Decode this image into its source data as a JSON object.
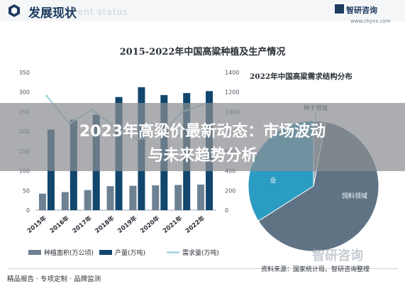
{
  "header": {
    "title": "发展现状",
    "subtitle": "ent status",
    "logo_name": "智研咨询",
    "logo_url": "www.chyxx.com"
  },
  "chart_data": [
    {
      "type": "bar",
      "title": "2015-2022年中国高粱种植及生产情况",
      "categories": [
        "2015年",
        "2016年",
        "2017年",
        "2018年",
        "2019年",
        "2020年",
        "2021年",
        "2022年"
      ],
      "y_left": {
        "ylim": [
          0,
          350
        ],
        "ticks": [
          "0",
          "50",
          "100",
          "150",
          "200",
          "250",
          "300",
          "350"
        ]
      },
      "y_right": {
        "ylim": [
          0,
          1400
        ],
        "ticks": [
          "0",
          "200",
          "400",
          "600",
          "800",
          "1000",
          "1200",
          "1400"
        ]
      },
      "series": [
        {
          "name": "种植面积(万公顷)",
          "type": "bar",
          "axis": "left",
          "color": "#6d8192",
          "values": [
            42,
            46,
            51,
            61,
            62,
            63,
            64,
            65
          ]
        },
        {
          "name": "产量(万吨)",
          "type": "bar",
          "axis": "right",
          "color": "#11466d",
          "values": [
            820,
            920,
            970,
            1150,
            1250,
            1170,
            1190,
            1210
          ]
        },
        {
          "name": "需求量(万吨)",
          "type": "line",
          "axis": "right",
          "color": "#9fd3e0",
          "values": [
            1160,
            880,
            1020,
            850,
            720,
            760,
            1000,
            1080
          ]
        }
      ],
      "legend_position": "bottom",
      "grid": false
    },
    {
      "type": "pie",
      "title": "2022年中国高粱需求结构分布",
      "slices": [
        {
          "label": "种子领域",
          "value": 3,
          "color": "#8a9ba8"
        },
        {
          "label": "饲料领域",
          "value": 63,
          "color": "#5f7385"
        },
        {
          "label": "酿造工业",
          "value": 34,
          "color": "#2b9cc2"
        }
      ],
      "visible_labels": [
        "种子领域",
        "饲料领域",
        "业"
      ]
    }
  ],
  "overlay": {
    "line1": "2023年高粱价最新动态：市场波动",
    "line2": "与未来趋势分析"
  },
  "footer": {
    "left": "精品报告 · 专项定制 · 品牌监测",
    "right": "资料来源：国家统计局、智研咨询整理"
  },
  "watermark_text": "智研咨询",
  "colors": {
    "brand": "#1d3a5f",
    "bar_area": "#6d8192",
    "bar_output": "#11466d",
    "line_demand": "#9fd3e0"
  }
}
